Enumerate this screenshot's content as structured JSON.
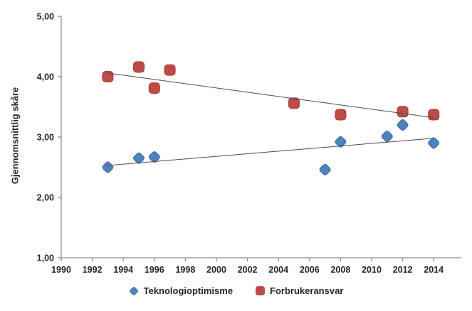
{
  "chart_data": {
    "type": "scatter",
    "title": "",
    "xlabel": "",
    "ylabel": "Gjennomsnittlig skåre",
    "grid": false,
    "legend_position": "bottom",
    "x_axis": {
      "min": 1990,
      "max": 2016,
      "ticks": [
        1990,
        1992,
        1994,
        1996,
        1998,
        2000,
        2002,
        2004,
        2006,
        2008,
        2010,
        2012,
        2014
      ],
      "tick_labels": [
        "1990",
        "1992",
        "1994",
        "1996",
        "1998",
        "2000",
        "2002",
        "2004",
        "2006",
        "2008",
        "2010",
        "2012",
        "2014"
      ]
    },
    "y_axis": {
      "min": 1,
      "max": 5,
      "ticks": [
        5,
        4,
        3,
        2,
        1
      ],
      "tick_labels": [
        "5,00",
        "4,00",
        "3,00",
        "2,00",
        "1,00"
      ]
    },
    "series": [
      {
        "name": "Teknologioptimisme",
        "marker": "diamond",
        "color": "#4F81BD",
        "border_color": "#3A6AA5",
        "points": [
          {
            "x": 1993,
            "y": 2.5
          },
          {
            "x": 1995,
            "y": 2.65
          },
          {
            "x": 1996,
            "y": 2.67
          },
          {
            "x": 2007,
            "y": 2.46
          },
          {
            "x": 2008,
            "y": 2.92
          },
          {
            "x": 2011,
            "y": 3.01
          },
          {
            "x": 2012,
            "y": 3.2
          },
          {
            "x": 2014,
            "y": 2.9
          }
        ],
        "trendline": {
          "x1": 1993,
          "y1": 2.53,
          "x2": 2014,
          "y2": 2.98
        }
      },
      {
        "name": "Forbrukeransvar",
        "marker": "square",
        "color": "#BE4B48",
        "border_color": "#9E3D3A",
        "points": [
          {
            "x": 1993,
            "y": 4.0
          },
          {
            "x": 1995,
            "y": 4.16
          },
          {
            "x": 1996,
            "y": 3.81
          },
          {
            "x": 1997,
            "y": 4.11
          },
          {
            "x": 2005,
            "y": 3.56
          },
          {
            "x": 2008,
            "y": 3.37
          },
          {
            "x": 2012,
            "y": 3.42
          },
          {
            "x": 2014,
            "y": 3.37
          }
        ],
        "trendline": {
          "x1": 1993,
          "y1": 4.06,
          "x2": 2014,
          "y2": 3.32
        }
      }
    ],
    "styles": {
      "background": "#FFFFFF",
      "axis_color": "#8C8C8C",
      "tick_label_color": "#262626",
      "trendline_color": "#4D4D4D"
    }
  }
}
